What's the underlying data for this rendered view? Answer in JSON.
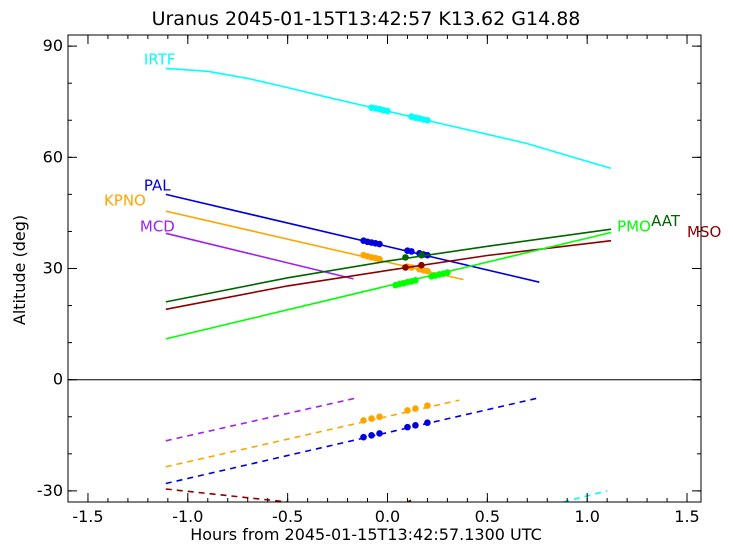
{
  "chart_data": {
    "type": "line",
    "title": "Uranus 2045-01-15T13:42:57  K13.62  G14.88",
    "xlabel": "Hours from 2045-01-15T13:42:57.1300 UTC",
    "ylabel": "Altitude (deg)",
    "xlim": [
      -1.6,
      1.57
    ],
    "ylim": [
      -33,
      93
    ],
    "x_ticks": [
      -1.5,
      -1.0,
      -0.5,
      0.0,
      0.5,
      1.0,
      1.5
    ],
    "x_tick_labels": [
      "-1.5",
      "-1.0",
      "-0.5",
      "0.0",
      "0.5",
      "1.0",
      "1.5"
    ],
    "y_ticks": [
      -30,
      0,
      30,
      60,
      90
    ],
    "y_tick_labels": [
      "-30",
      "0",
      "30",
      "60",
      "90"
    ],
    "horizon_line": 0,
    "grid": false,
    "series": [
      {
        "name": "IRTF",
        "color": "#00ffff",
        "label_at": [
          -1.22,
          85
        ],
        "points": [
          [
            -1.11,
            84
          ],
          [
            -0.9,
            83.2
          ],
          [
            -0.7,
            81.3
          ],
          [
            -0.5,
            78.8
          ],
          [
            -0.3,
            76.2
          ],
          [
            -0.1,
            73.7
          ],
          [
            0.1,
            71.2
          ],
          [
            0.3,
            68.7
          ],
          [
            0.5,
            66.2
          ],
          [
            0.7,
            63.7
          ],
          [
            0.9,
            60.5
          ],
          [
            1.12,
            57
          ]
        ],
        "dots": [
          [
            -0.08,
            73.4
          ],
          [
            -0.06,
            73.2
          ],
          [
            -0.04,
            73
          ],
          [
            -0.02,
            72.7
          ],
          [
            0.0,
            72.5
          ],
          [
            0.12,
            71
          ],
          [
            0.14,
            70.7
          ],
          [
            0.16,
            70.5
          ],
          [
            0.18,
            70.2
          ],
          [
            0.2,
            70
          ]
        ],
        "below_horizon": [
          [
            0.88,
            -33
          ],
          [
            1.1,
            -30
          ]
        ]
      },
      {
        "name": "PAL",
        "color": "#0000dd",
        "label_at": [
          -1.22,
          51
        ],
        "points": [
          [
            -1.11,
            50
          ],
          [
            0.76,
            26.3
          ]
        ],
        "dots": [
          [
            -0.12,
            37.5
          ],
          [
            -0.1,
            37.2
          ],
          [
            -0.08,
            37
          ],
          [
            -0.06,
            36.8
          ],
          [
            -0.04,
            36.6
          ],
          [
            0.1,
            34.8
          ],
          [
            0.12,
            34.6
          ],
          [
            0.16,
            34.1
          ],
          [
            0.18,
            33.8
          ],
          [
            0.2,
            33.6
          ]
        ],
        "below_horizon": [
          [
            -1.11,
            -28
          ],
          [
            0.75,
            -5
          ]
        ],
        "below_dots": [
          [
            -0.12,
            -15.5
          ],
          [
            -0.08,
            -15
          ],
          [
            -0.04,
            -14.5
          ],
          [
            0.1,
            -12.8
          ],
          [
            0.14,
            -12.3
          ],
          [
            0.2,
            -11.6
          ]
        ]
      },
      {
        "name": "KPNO",
        "color": "#ffa500",
        "label_at": [
          -1.42,
          47
        ],
        "points": [
          [
            -1.11,
            45.5
          ],
          [
            0.38,
            27
          ]
        ],
        "dots": [
          [
            -0.12,
            33.6
          ],
          [
            -0.1,
            33.3
          ],
          [
            -0.08,
            33
          ],
          [
            -0.06,
            32.8
          ],
          [
            -0.04,
            32.5
          ],
          [
            0.1,
            30.5
          ],
          [
            0.12,
            30.3
          ],
          [
            0.16,
            29.8
          ],
          [
            0.18,
            29.5
          ],
          [
            0.2,
            29.3
          ]
        ],
        "below_horizon": [
          [
            -1.11,
            -23.5
          ],
          [
            0.36,
            -5.5
          ]
        ],
        "below_dots": [
          [
            -0.12,
            -11
          ],
          [
            -0.08,
            -10.5
          ],
          [
            -0.04,
            -10
          ],
          [
            0.1,
            -8.3
          ],
          [
            0.14,
            -7.8
          ],
          [
            0.2,
            -7
          ]
        ]
      },
      {
        "name": "MCD",
        "color": "#a020f0",
        "label_at": [
          -1.24,
          40
        ],
        "points": [
          [
            -1.11,
            39.5
          ],
          [
            -0.17,
            27.2
          ]
        ],
        "dots": [],
        "below_horizon": [
          [
            -1.11,
            -16.5
          ],
          [
            -0.16,
            -5
          ]
        ]
      },
      {
        "name": "AAT",
        "color": "#006400",
        "label_at": [
          1.32,
          41.5
        ],
        "points": [
          [
            -1.11,
            21
          ],
          [
            -0.5,
            27.5
          ],
          [
            0.0,
            32
          ],
          [
            0.5,
            36
          ],
          [
            1.12,
            40.6
          ]
        ],
        "dots": [
          [
            0.09,
            33
          ],
          [
            0.17,
            33.6
          ]
        ]
      },
      {
        "name": "MSO",
        "color": "#8b0000",
        "label_at": [
          1.5,
          38.5
        ],
        "points": [
          [
            -1.11,
            19
          ],
          [
            -0.5,
            25.3
          ],
          [
            0.0,
            29.5
          ],
          [
            0.5,
            33.5
          ],
          [
            1.12,
            37.5
          ]
        ],
        "dots": [
          [
            0.09,
            30.3
          ],
          [
            0.17,
            30.9
          ]
        ],
        "below_horizon": [
          [
            -1.11,
            -29.5
          ],
          [
            -0.5,
            -33
          ]
        ],
        "below_extra": [
          [
            0.1,
            -33
          ],
          [
            0.12,
            -32.5
          ]
        ]
      },
      {
        "name": "PMO",
        "color": "#00ff00",
        "label_at": [
          1.15,
          40
        ],
        "points": [
          [
            -1.11,
            11
          ],
          [
            1.12,
            39.7
          ]
        ],
        "dots": [
          [
            0.04,
            25.5
          ],
          [
            0.06,
            25.8
          ],
          [
            0.08,
            26
          ],
          [
            0.1,
            26.3
          ],
          [
            0.12,
            26.5
          ],
          [
            0.14,
            26.8
          ],
          [
            0.22,
            27.9
          ],
          [
            0.24,
            28.1
          ],
          [
            0.26,
            28.4
          ],
          [
            0.28,
            28.6
          ],
          [
            0.3,
            28.9
          ]
        ]
      }
    ]
  }
}
